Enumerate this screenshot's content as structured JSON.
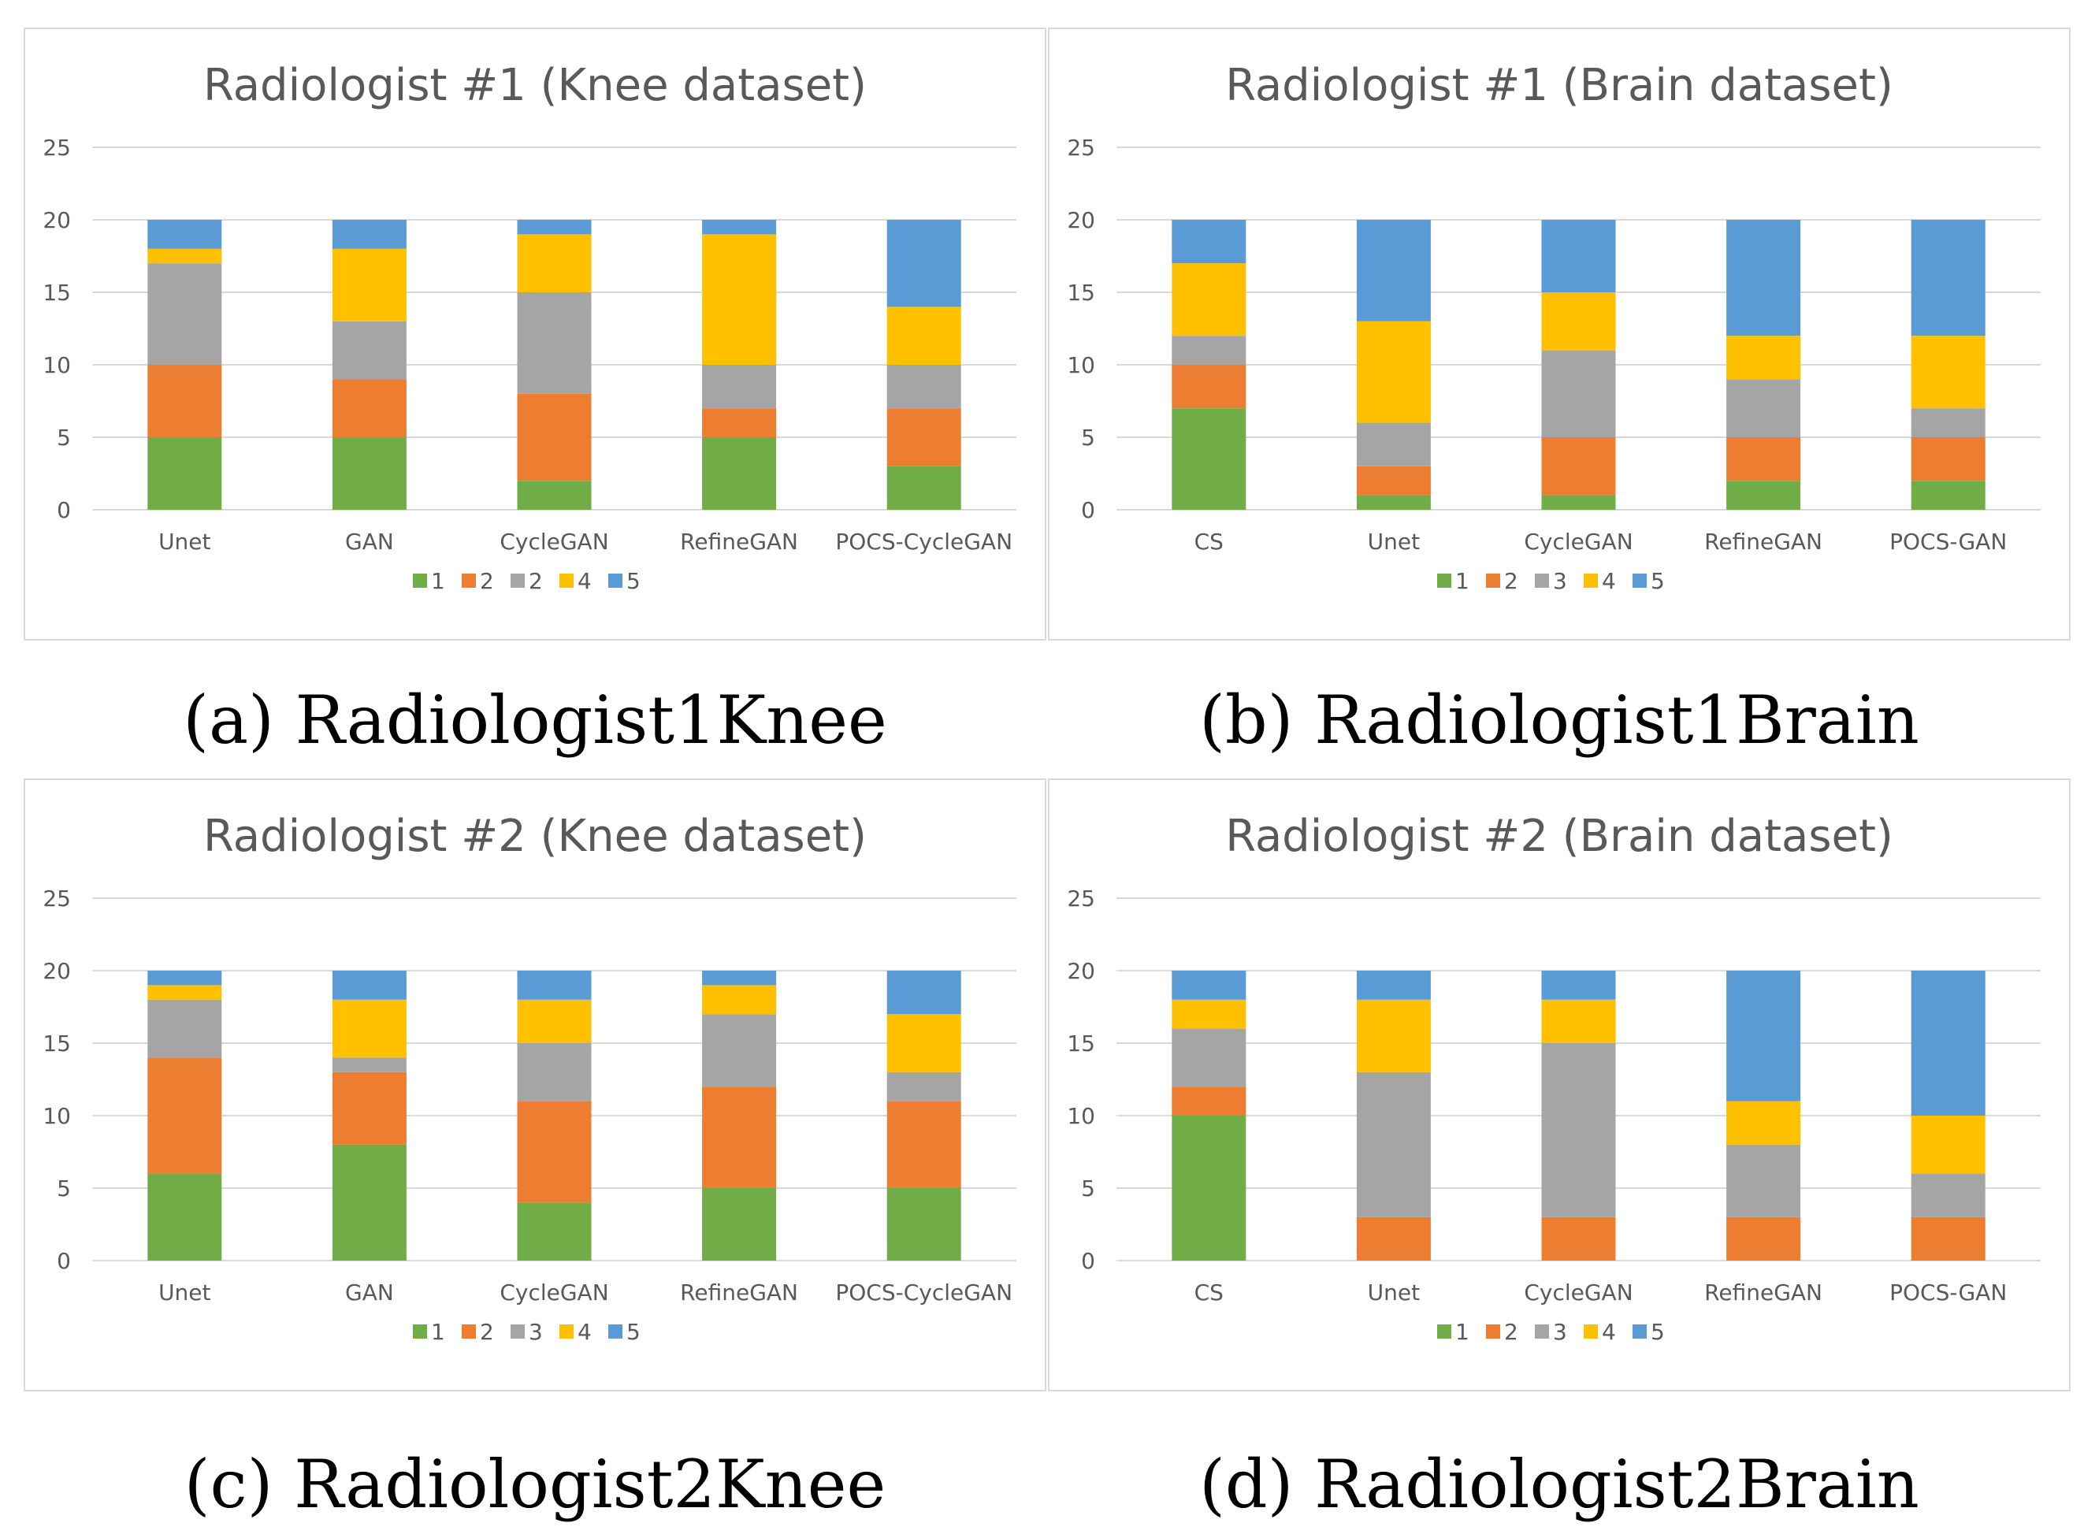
{
  "colors": {
    "level_1": "#70ad47",
    "level_2": "#ed7d31",
    "level_3": "#a5a5a5",
    "level_4": "#ffc000",
    "level_5": "#5b9bd5"
  },
  "captions": [
    "(a) Radiologist1Knee",
    "(b) Radiologist1Brain",
    "(c) Radiologist2Knee",
    "(d) Radiologist2Brain"
  ],
  "chart_data": [
    {
      "type": "bar",
      "stacked": true,
      "title": "Radiologist #1 (Knee dataset)",
      "ylim": [
        0,
        25
      ],
      "yticks": [
        "0",
        "5",
        "10",
        "15",
        "20",
        "25"
      ],
      "categories": [
        "Unet",
        "GAN",
        "CycleGAN",
        "RefineGAN",
        "POCS-CycleGAN"
      ],
      "series": [
        {
          "name": "1",
          "values": [
            5,
            5,
            2,
            5,
            3
          ]
        },
        {
          "name": "2",
          "values": [
            5,
            4,
            6,
            2,
            4
          ]
        },
        {
          "name": "2",
          "values": [
            7,
            4,
            7,
            3,
            3
          ]
        },
        {
          "name": "4",
          "values": [
            1,
            5,
            4,
            9,
            4
          ]
        },
        {
          "name": "5",
          "values": [
            2,
            2,
            1,
            1,
            6
          ]
        }
      ]
    },
    {
      "type": "bar",
      "stacked": true,
      "title": "Radiologist #1 (Brain dataset)",
      "ylim": [
        0,
        25
      ],
      "yticks": [
        "0",
        "5",
        "10",
        "15",
        "20",
        "25"
      ],
      "categories": [
        "CS",
        "Unet",
        "CycleGAN",
        "RefineGAN",
        "POCS-GAN"
      ],
      "series": [
        {
          "name": "1",
          "values": [
            7,
            1,
            1,
            2,
            2
          ]
        },
        {
          "name": "2",
          "values": [
            3,
            2,
            4,
            3,
            3
          ]
        },
        {
          "name": "3",
          "values": [
            2,
            3,
            6,
            4,
            2
          ]
        },
        {
          "name": "4",
          "values": [
            5,
            7,
            4,
            3,
            5
          ]
        },
        {
          "name": "5",
          "values": [
            3,
            7,
            5,
            8,
            8
          ]
        }
      ]
    },
    {
      "type": "bar",
      "stacked": true,
      "title": "Radiologist #2 (Knee dataset)",
      "ylim": [
        0,
        25
      ],
      "yticks": [
        "0",
        "5",
        "10",
        "15",
        "20",
        "25"
      ],
      "categories": [
        "Unet",
        "GAN",
        "CycleGAN",
        "RefineGAN",
        "POCS-CycleGAN"
      ],
      "series": [
        {
          "name": "1",
          "values": [
            6,
            8,
            4,
            5,
            5
          ]
        },
        {
          "name": "2",
          "values": [
            8,
            5,
            7,
            7,
            6
          ]
        },
        {
          "name": "3",
          "values": [
            4,
            1,
            4,
            5,
            2
          ]
        },
        {
          "name": "4",
          "values": [
            1,
            4,
            3,
            2,
            4
          ]
        },
        {
          "name": "5",
          "values": [
            1,
            2,
            2,
            1,
            3
          ]
        }
      ]
    },
    {
      "type": "bar",
      "stacked": true,
      "title": "Radiologist #2 (Brain dataset)",
      "ylim": [
        0,
        25
      ],
      "yticks": [
        "0",
        "5",
        "10",
        "15",
        "20",
        "25"
      ],
      "categories": [
        "CS",
        "Unet",
        "CycleGAN",
        "RefineGAN",
        "POCS-GAN"
      ],
      "series": [
        {
          "name": "1",
          "values": [
            10,
            0,
            0,
            0,
            0
          ]
        },
        {
          "name": "2",
          "values": [
            2,
            3,
            3,
            3,
            3
          ]
        },
        {
          "name": "3",
          "values": [
            4,
            10,
            12,
            5,
            3
          ]
        },
        {
          "name": "4",
          "values": [
            2,
            5,
            3,
            3,
            4
          ]
        },
        {
          "name": "5",
          "values": [
            2,
            2,
            2,
            9,
            10
          ]
        }
      ]
    }
  ]
}
